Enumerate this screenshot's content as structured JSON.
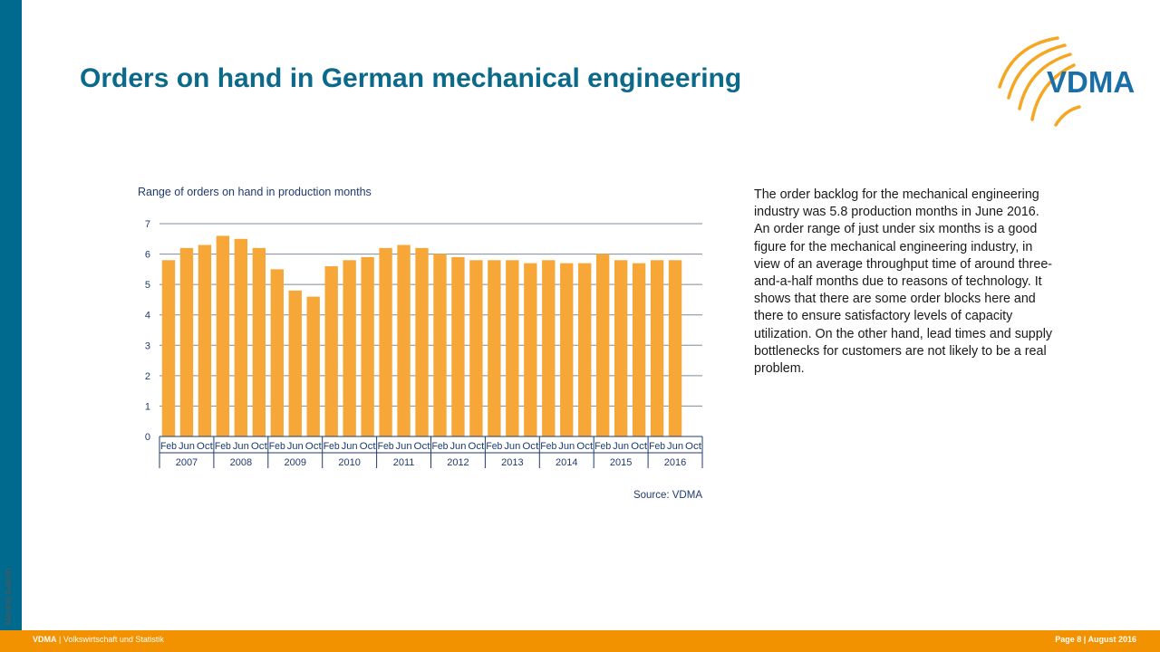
{
  "side_label": "Monthly bulletin",
  "title": "Orders on hand in German mechanical engineering",
  "logo": {
    "text": "VDMA"
  },
  "description": "The order backlog for the mechanical engineering industry was 5.8 production months in June 2016. An order range of just under six months is a good figure for the mechanical engineering industry, in view of an average throughput time of around three-and-a-half months due to reasons of technology. It shows that there are some order blocks here and there to ensure satisfactory levels of capacity utilization. On the other hand, lead times and supply bottlenecks for customers are not likely to be a real problem.",
  "footer": {
    "brand": "VDMA",
    "dept": "| Volkswirtschaft und Statistik",
    "page": "Page 8 | August 2016"
  },
  "colors": {
    "accent": "#f39200",
    "sidebar": "#006a8e",
    "title": "#0b6a8a",
    "bar": "#f7a738"
  },
  "chart_data": {
    "type": "bar",
    "title": "Range of orders on hand in production months",
    "source": "Source: VDMA",
    "ylim": [
      0,
      7
    ],
    "yticks": [
      "0",
      "1",
      "2",
      "3",
      "4",
      "5",
      "6",
      "7"
    ],
    "grid": true,
    "month_labels": [
      "Feb",
      "Jun",
      "Oct"
    ],
    "years": [
      "2007",
      "2008",
      "2009",
      "2010",
      "2011",
      "2012",
      "2013",
      "2014",
      "2015",
      "2016"
    ],
    "categories": [
      "Feb 2007",
      "Jun 2007",
      "Oct 2007",
      "Feb 2008",
      "Jun 2008",
      "Oct 2008",
      "Feb 2009",
      "Jun 2009",
      "Oct 2009",
      "Feb 2010",
      "Jun 2010",
      "Oct 2010",
      "Feb 2011",
      "Jun 2011",
      "Oct 2011",
      "Feb 2012",
      "Jun 2012",
      "Oct 2012",
      "Feb 2013",
      "Jun 2013",
      "Oct 2013",
      "Feb 2014",
      "Jun 2014",
      "Oct 2014",
      "Feb 2015",
      "Jun 2015",
      "Oct 2015",
      "Feb 2016",
      "Jun 2016"
    ],
    "values": [
      5.8,
      6.2,
      6.3,
      6.6,
      6.5,
      6.2,
      5.5,
      4.8,
      4.6,
      5.6,
      5.8,
      5.9,
      6.2,
      6.3,
      6.2,
      6.0,
      5.9,
      5.8,
      5.8,
      5.8,
      5.7,
      5.8,
      5.7,
      5.7,
      6.0,
      5.8,
      5.7,
      5.8,
      5.8
    ]
  }
}
